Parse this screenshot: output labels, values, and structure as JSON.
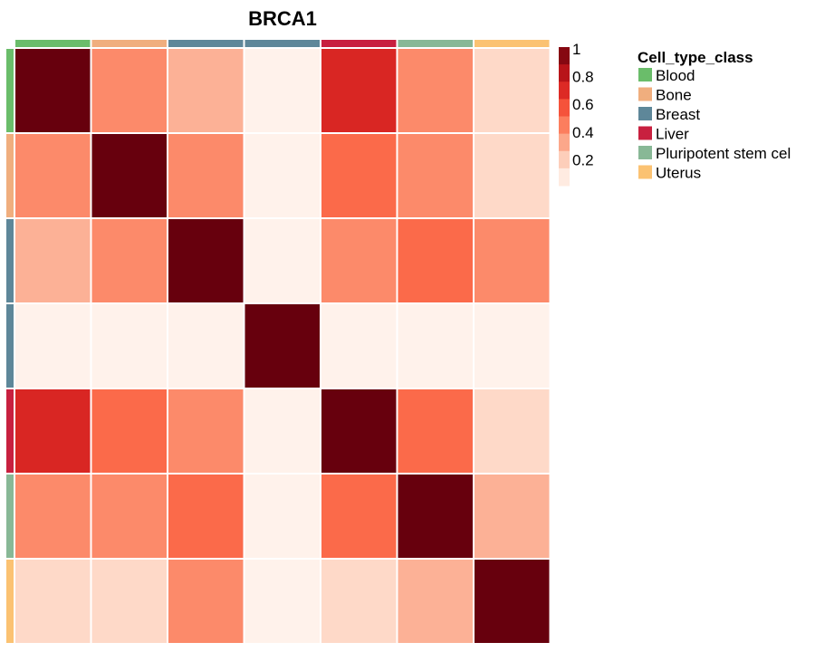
{
  "chart_data": {
    "type": "heatmap",
    "title": "BRCA1",
    "row_classes": [
      "Blood",
      "Bone",
      "Breast",
      "Breast",
      "Liver",
      "Pluripotent stem cel",
      "Uterus"
    ],
    "col_classes": [
      "Blood",
      "Bone",
      "Breast",
      "Breast",
      "Liver",
      "Pluripotent stem cel",
      "Uterus"
    ],
    "values": [
      [
        1.0,
        0.4,
        0.28,
        0.02,
        0.7,
        0.4,
        0.15
      ],
      [
        0.4,
        1.0,
        0.4,
        0.02,
        0.5,
        0.4,
        0.15
      ],
      [
        0.28,
        0.4,
        1.0,
        0.02,
        0.4,
        0.5,
        0.4
      ],
      [
        0.02,
        0.02,
        0.02,
        1.0,
        0.02,
        0.02,
        0.02
      ],
      [
        0.7,
        0.5,
        0.4,
        0.02,
        1.0,
        0.5,
        0.15
      ],
      [
        0.4,
        0.4,
        0.5,
        0.02,
        0.5,
        1.0,
        0.28
      ],
      [
        0.15,
        0.15,
        0.4,
        0.02,
        0.15,
        0.28,
        1.0
      ]
    ],
    "color_scale": {
      "min": 0,
      "max": 1,
      "stops": [
        "#FFF5F0",
        "#FEE0D2",
        "#FCBBA1",
        "#FC9272",
        "#FB6A4A",
        "#EF3B2C",
        "#CB181D",
        "#A50F15",
        "#67000D"
      ],
      "ticks": [
        1,
        0.8,
        0.6,
        0.4,
        0.2
      ],
      "tick_labels": [
        "1",
        "0.8",
        "0.6",
        "0.4",
        "0.2"
      ]
    },
    "legend": {
      "title": "Cell_type_class",
      "placement": "right",
      "entries": [
        {
          "name": "Blood",
          "color": "#6ABD6A"
        },
        {
          "name": "Bone",
          "color": "#F0AE7E"
        },
        {
          "name": "Breast",
          "color": "#5E8799"
        },
        {
          "name": "Liver",
          "color": "#C8203F"
        },
        {
          "name": "Pluripotent stem cel",
          "color": "#88B896"
        },
        {
          "name": "Uterus",
          "color": "#FBC272"
        }
      ]
    }
  }
}
